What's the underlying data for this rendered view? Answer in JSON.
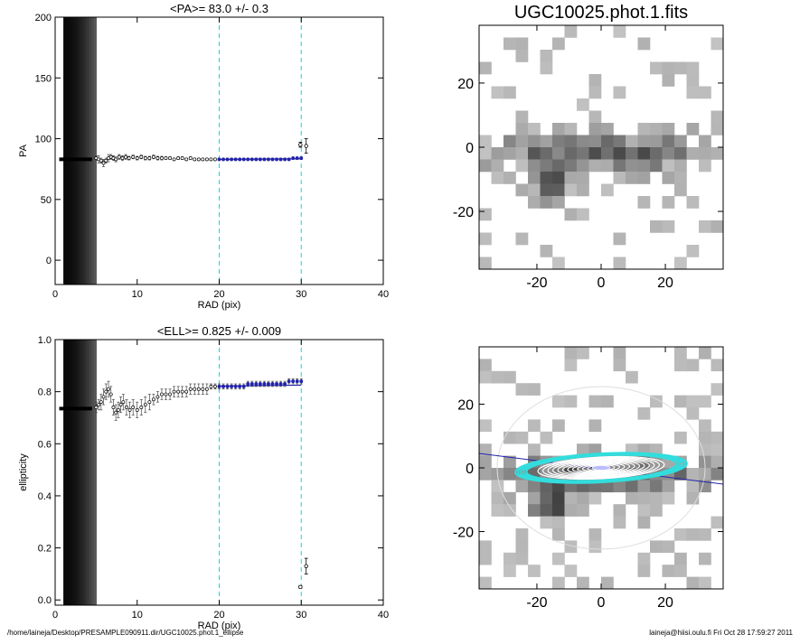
{
  "figure_title": "UGC10025.phot.1.fits",
  "colors": {
    "dashed": "#00e0e0",
    "fit": "#2222aa",
    "cyan_ellipse": "#33dddd"
  },
  "footer": {
    "path": "/home/laineja/Desktop/PRESAMPLE090911.dir/UGC10025.phot.1_ellipse",
    "stamp": "laineja@hiisi.oulu.fi  Fri Oct 28 17:59:27 2011"
  },
  "chart_data": [
    {
      "type": "scatter",
      "title": "<PA>=  83.0 +/-   0.3",
      "xlabel": "RAD (pix)",
      "ylabel": "PA",
      "xlim": [
        0,
        40
      ],
      "ylim": [
        -20,
        200
      ],
      "xticks": [
        "0",
        "10",
        "20",
        "30",
        "40"
      ],
      "yticks": [
        "0",
        "50",
        "100",
        "150",
        "200"
      ],
      "dashed_x": [
        20,
        30
      ],
      "inner_shade_x": [
        1,
        5
      ],
      "flat": {
        "x0": 0.5,
        "x1": 4.5,
        "y": 83
      },
      "points": [
        [
          5.0,
          84,
          2
        ],
        [
          5.3,
          83,
          3
        ],
        [
          5.6,
          82,
          2
        ],
        [
          5.9,
          80,
          3
        ],
        [
          6.2,
          82,
          2
        ],
        [
          6.5,
          84,
          3
        ],
        [
          6.8,
          85,
          2
        ],
        [
          7.1,
          84,
          2
        ],
        [
          7.4,
          83,
          2
        ],
        [
          7.8,
          85,
          2
        ],
        [
          8.2,
          84,
          2
        ],
        [
          8.6,
          85,
          2
        ],
        [
          9.0,
          84,
          1.5
        ],
        [
          9.5,
          85,
          1.5
        ],
        [
          10.0,
          84,
          1.5
        ],
        [
          10.5,
          85,
          1.5
        ],
        [
          11.0,
          84,
          1.5
        ],
        [
          11.5,
          84,
          1.5
        ],
        [
          12.0,
          85,
          1.5
        ],
        [
          12.5,
          84,
          1.5
        ],
        [
          13.0,
          84,
          1.5
        ],
        [
          13.5,
          84,
          1
        ],
        [
          14.0,
          84,
          1
        ],
        [
          14.5,
          83,
          1
        ],
        [
          15.0,
          84,
          1
        ],
        [
          15.5,
          84,
          1
        ],
        [
          16.0,
          83,
          1
        ],
        [
          16.5,
          84,
          1
        ],
        [
          17.0,
          83,
          1
        ],
        [
          17.5,
          83,
          1
        ],
        [
          18.0,
          83,
          1
        ],
        [
          18.5,
          83,
          1
        ],
        [
          19.0,
          83,
          1
        ],
        [
          19.5,
          83,
          1
        ],
        [
          20.0,
          83,
          1
        ],
        [
          20.5,
          83,
          1
        ],
        [
          21.0,
          83,
          1
        ],
        [
          21.5,
          83,
          1
        ],
        [
          22.0,
          83,
          1
        ],
        [
          22.5,
          83,
          1
        ],
        [
          23.0,
          83,
          1
        ],
        [
          23.5,
          83,
          1
        ],
        [
          24.0,
          83,
          1
        ],
        [
          24.5,
          83,
          1
        ],
        [
          25.0,
          83,
          1
        ],
        [
          25.5,
          83,
          1
        ],
        [
          26.0,
          83,
          1
        ],
        [
          26.5,
          83,
          1
        ],
        [
          27.0,
          83,
          1
        ],
        [
          27.5,
          83,
          1
        ],
        [
          28.0,
          83,
          1
        ],
        [
          28.5,
          83,
          1
        ],
        [
          29.0,
          84,
          1
        ],
        [
          29.5,
          84,
          1
        ],
        [
          30.0,
          84,
          1
        ]
      ],
      "outliers": [
        [
          29.9,
          95,
          2
        ],
        [
          30.6,
          94,
          6
        ]
      ],
      "fit_line": {
        "x0": 20,
        "x1": 30,
        "y0": 83,
        "y1": 83.5
      }
    },
    {
      "type": "scatter",
      "title": "<ELL>= 0.825 +/-  0.009",
      "xlabel": "RAD (pix)",
      "ylabel": "ellipticity",
      "xlim": [
        0,
        40
      ],
      "ylim": [
        -0.02,
        1.0
      ],
      "xticks": [
        "0",
        "10",
        "20",
        "30",
        "40"
      ],
      "yticks": [
        "0.0",
        "0.2",
        "0.4",
        "0.6",
        "0.8",
        "1.0"
      ],
      "dashed_x": [
        20,
        30
      ],
      "inner_shade_x": [
        1,
        5
      ],
      "flat": {
        "x0": 0.5,
        "x1": 4.5,
        "y": 0.735
      },
      "points": [
        [
          5.0,
          0.74,
          0.02
        ],
        [
          5.3,
          0.75,
          0.02
        ],
        [
          5.6,
          0.76,
          0.03
        ],
        [
          5.9,
          0.78,
          0.03
        ],
        [
          6.2,
          0.8,
          0.03
        ],
        [
          6.5,
          0.81,
          0.03
        ],
        [
          6.8,
          0.79,
          0.03
        ],
        [
          7.1,
          0.74,
          0.03
        ],
        [
          7.4,
          0.72,
          0.03
        ],
        [
          7.7,
          0.73,
          0.03
        ],
        [
          8.0,
          0.75,
          0.03
        ],
        [
          8.3,
          0.76,
          0.03
        ],
        [
          8.7,
          0.74,
          0.03
        ],
        [
          9.1,
          0.73,
          0.03
        ],
        [
          9.5,
          0.74,
          0.03
        ],
        [
          10.0,
          0.73,
          0.03
        ],
        [
          10.5,
          0.74,
          0.03
        ],
        [
          11.0,
          0.75,
          0.03
        ],
        [
          11.5,
          0.76,
          0.03
        ],
        [
          12.0,
          0.77,
          0.02
        ],
        [
          12.5,
          0.78,
          0.02
        ],
        [
          13.0,
          0.79,
          0.02
        ],
        [
          13.5,
          0.79,
          0.02
        ],
        [
          14.0,
          0.79,
          0.02
        ],
        [
          14.5,
          0.8,
          0.02
        ],
        [
          15.0,
          0.8,
          0.02
        ],
        [
          15.5,
          0.8,
          0.02
        ],
        [
          16.0,
          0.8,
          0.02
        ],
        [
          16.5,
          0.81,
          0.02
        ],
        [
          17.0,
          0.81,
          0.02
        ],
        [
          17.5,
          0.81,
          0.02
        ],
        [
          18.0,
          0.81,
          0.02
        ],
        [
          18.5,
          0.81,
          0.02
        ],
        [
          19.0,
          0.82,
          0.01
        ],
        [
          19.5,
          0.82,
          0.01
        ],
        [
          20.0,
          0.82,
          0.01
        ],
        [
          20.5,
          0.82,
          0.01
        ],
        [
          21.0,
          0.82,
          0.01
        ],
        [
          21.5,
          0.82,
          0.01
        ],
        [
          22.0,
          0.82,
          0.01
        ],
        [
          22.5,
          0.82,
          0.01
        ],
        [
          23.0,
          0.82,
          0.01
        ],
        [
          23.5,
          0.83,
          0.01
        ],
        [
          24.0,
          0.83,
          0.01
        ],
        [
          24.5,
          0.83,
          0.01
        ],
        [
          25.0,
          0.83,
          0.01
        ],
        [
          25.5,
          0.83,
          0.01
        ],
        [
          26.0,
          0.83,
          0.01
        ],
        [
          26.5,
          0.83,
          0.01
        ],
        [
          27.0,
          0.83,
          0.01
        ],
        [
          27.5,
          0.83,
          0.01
        ],
        [
          28.0,
          0.83,
          0.01
        ],
        [
          28.5,
          0.84,
          0.01
        ],
        [
          29.0,
          0.84,
          0.01
        ],
        [
          29.5,
          0.84,
          0.01
        ],
        [
          30.0,
          0.84,
          0.01
        ]
      ],
      "outliers": [
        [
          29.9,
          0.05,
          0.005
        ],
        [
          30.6,
          0.13,
          0.03
        ]
      ],
      "fit_line": {
        "x0": 20,
        "x1": 30,
        "y0": 0.822,
        "y1": 0.825
      }
    },
    {
      "type": "heatmap",
      "title": "UGC10025.phot.1.fits",
      "xlim": [
        -38,
        38
      ],
      "ylim": [
        -38,
        38
      ],
      "xticks": [
        "-20",
        "0",
        "20"
      ],
      "yticks": [
        "-20",
        "0",
        "20"
      ]
    },
    {
      "type": "heatmap",
      "title": "",
      "xlim": [
        -38,
        38
      ],
      "ylim": [
        -38,
        38
      ],
      "xticks": [
        "-20",
        "0",
        "20"
      ],
      "yticks": [
        "-20",
        "0",
        "20"
      ],
      "overlay": "isophote ellipses"
    }
  ]
}
